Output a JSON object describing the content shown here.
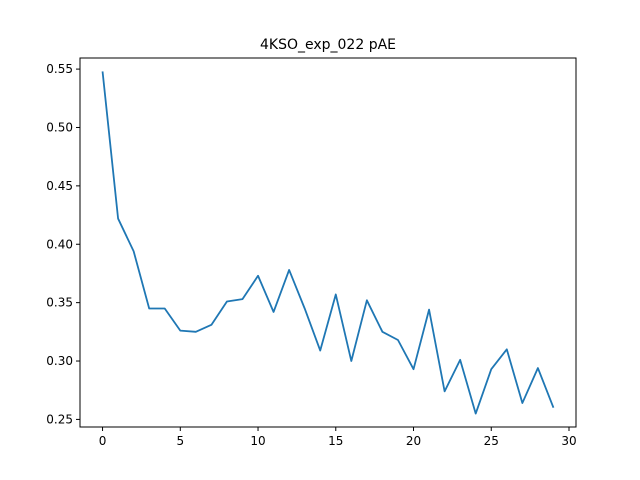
{
  "chart_data": {
    "type": "line",
    "title": "4KSO_exp_022 pAE",
    "xlabel": "",
    "ylabel": "",
    "xlim": [
      -1.45,
      30.45
    ],
    "ylim": [
      0.2435,
      0.5595
    ],
    "grid": false,
    "x_ticks": [
      0,
      5,
      10,
      15,
      20,
      25,
      30
    ],
    "x_tick_labels": [
      "0",
      "5",
      "10",
      "15",
      "20",
      "25",
      "30"
    ],
    "y_ticks": [
      0.25,
      0.3,
      0.35,
      0.4,
      0.45,
      0.5,
      0.55
    ],
    "y_tick_labels": [
      "0.25",
      "0.30",
      "0.35",
      "0.40",
      "0.45",
      "0.50",
      "0.55"
    ],
    "series": [
      {
        "color": "#1f77b4",
        "x": [
          0,
          1,
          2,
          3,
          4,
          5,
          6,
          7,
          8,
          9,
          10,
          11,
          12,
          13,
          14,
          15,
          16,
          17,
          18,
          19,
          20,
          21,
          22,
          23,
          24,
          25,
          26,
          27,
          28,
          29
        ],
        "y": [
          0.548,
          0.422,
          0.394,
          0.345,
          0.345,
          0.326,
          0.325,
          0.331,
          0.351,
          0.353,
          0.373,
          0.342,
          0.378,
          0.345,
          0.309,
          0.357,
          0.3,
          0.352,
          0.325,
          0.318,
          0.293,
          0.344,
          0.274,
          0.301,
          0.255,
          0.293,
          0.31,
          0.264,
          0.294,
          0.26
        ]
      }
    ]
  }
}
